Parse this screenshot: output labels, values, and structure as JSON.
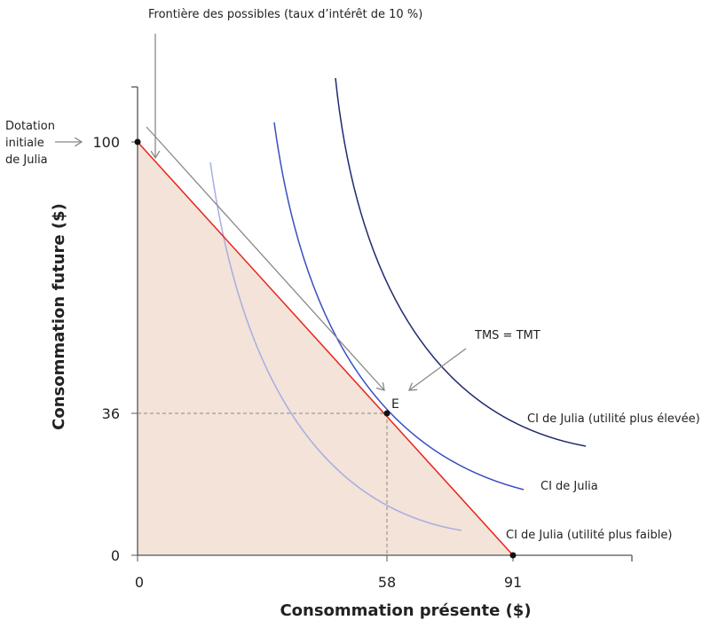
{
  "chart_data": {
    "type": "line",
    "title": "",
    "xlabel": "Consommation présente ($)",
    "ylabel": "Consommation future ($)",
    "xlim": [
      0,
      120
    ],
    "ylim": [
      0,
      115
    ],
    "x_ticks": [
      "0",
      "58",
      "91"
    ],
    "y_ticks": [
      "0",
      "36",
      "100"
    ],
    "budget_line": {
      "name": "Frontière des possibles (taux d’intérêt de 10 %)",
      "points": [
        [
          0,
          100
        ],
        [
          91,
          0
        ]
      ],
      "color": "#e8231b"
    },
    "feasible_fill": "#f3e3d9",
    "points": [
      {
        "label": "",
        "x": 0,
        "y": 100
      },
      {
        "label": "E",
        "x": 58,
        "y": 36
      },
      {
        "label": "",
        "x": 91,
        "y": 0
      }
    ],
    "series": [
      {
        "name": "CI de Julia (utilité plus faible)",
        "color": "#a7aee0"
      },
      {
        "name": "CI de Julia",
        "color": "#3a4fc0"
      },
      {
        "name": "CI de Julia (utilité plus élevée)",
        "color": "#1e2a6e"
      }
    ],
    "annotations": {
      "frontier": "Frontière des possibles (taux d’intérêt de 10 %)",
      "endowment": [
        "Dotation",
        "initiale",
        "de Julia"
      ],
      "tangency": "TMS = TMT"
    }
  }
}
